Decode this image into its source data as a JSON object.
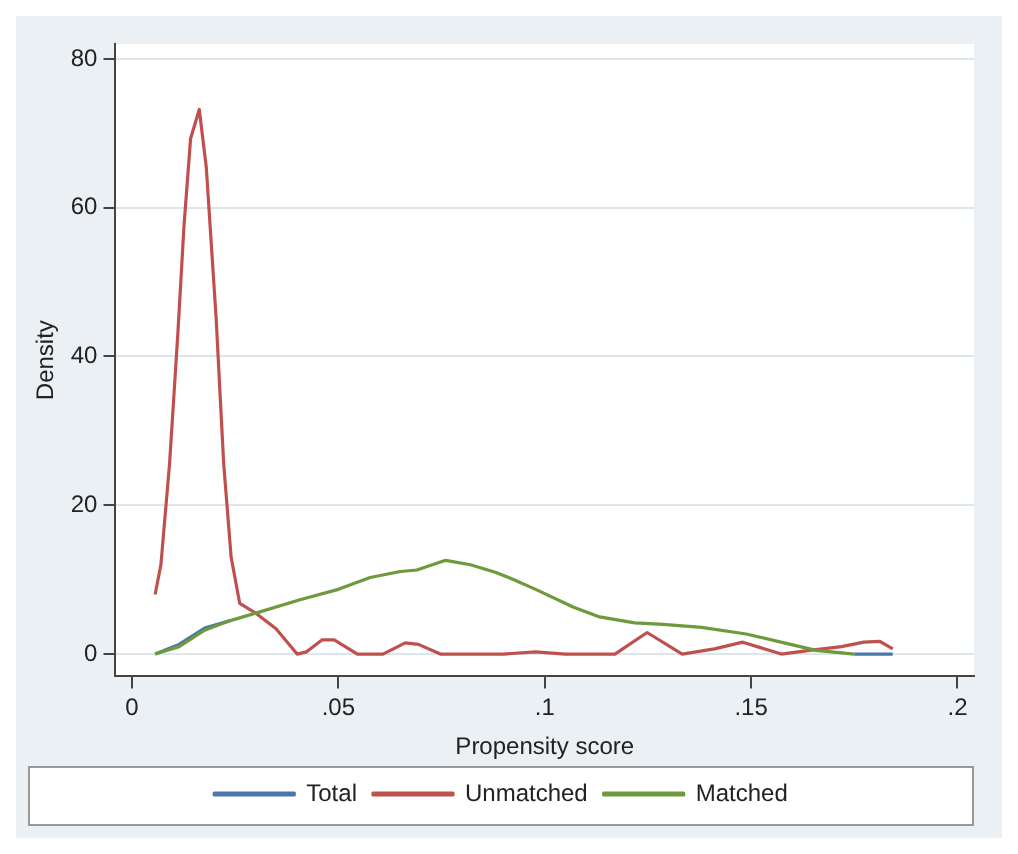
{
  "chart_data": {
    "type": "line",
    "xlabel": "Propensity score",
    "ylabel": "Density",
    "xlim": [
      -0.004,
      0.204
    ],
    "ylim": [
      -3,
      82
    ],
    "xticks": [
      0,
      {
        "value": 0.05,
        "label": ".05"
      },
      {
        "value": 0.1,
        "label": ".1"
      },
      {
        "value": 0.15,
        "label": ".15"
      },
      {
        "value": 0.2,
        "label": ".2"
      }
    ],
    "yticks": [
      0,
      20,
      40,
      60,
      80
    ],
    "grid": "y",
    "legend": "bottom",
    "marker": "none",
    "line_style": "solid",
    "series": [
      {
        "name": "Total",
        "color": "#4a78ad",
        "x": [
          0.0056,
          0.0114,
          0.0176,
          0.0238,
          0.03,
          0.0407,
          0.05,
          0.0577,
          0.065,
          0.069,
          0.076,
          0.082,
          0.088,
          0.0917,
          0.0978,
          0.107,
          0.1133,
          0.1218,
          0.1287,
          0.138,
          0.1488,
          0.158,
          0.1657,
          0.175,
          0.1843
        ],
        "values": [
          0,
          1.3,
          3.5,
          4.5,
          null,
          null,
          null,
          null,
          null,
          null,
          null,
          null,
          null,
          null,
          null,
          null,
          null,
          null,
          null,
          null,
          null,
          null,
          null,
          0,
          0
        ]
      },
      {
        "name": "Unmatched",
        "color": "#c0504d",
        "x": [
          0.0056,
          0.007,
          0.0091,
          0.0111,
          0.0126,
          0.0142,
          0.0163,
          0.018,
          0.0204,
          0.0222,
          0.024,
          0.0261,
          0.03,
          0.0349,
          0.04,
          0.0423,
          0.046,
          0.049,
          0.0546,
          0.0608,
          0.0662,
          0.0694,
          0.0747,
          0.09,
          0.0978,
          0.105,
          0.117,
          0.1248,
          0.1333,
          0.1411,
          0.148,
          0.1573,
          0.1642,
          0.1719,
          0.1773,
          0.1812,
          0.1843
        ],
        "values": [
          8,
          12,
          25.6,
          43,
          57.6,
          69.3,
          73.2,
          65.4,
          45,
          25.7,
          13.1,
          6.8,
          5.5,
          3.4,
          0,
          0.3,
          1.9,
          1.9,
          0,
          0,
          1.5,
          1.3,
          0,
          0,
          0.3,
          0,
          0,
          2.9,
          0,
          0.7,
          1.6,
          0,
          0.5,
          1.0,
          1.6,
          1.7,
          0.7
        ]
      },
      {
        "name": "Matched",
        "color": "#6e9a3b",
        "x": [
          0.0056,
          0.0114,
          0.0176,
          0.0238,
          0.03,
          0.0407,
          0.05,
          0.0577,
          0.065,
          0.069,
          0.076,
          0.082,
          0.088,
          0.0917,
          0.0978,
          0.107,
          0.1133,
          0.1218,
          0.1287,
          0.138,
          0.1488,
          0.158,
          0.1657,
          0.175
        ],
        "values": [
          0,
          1.0,
          3.2,
          4.5,
          5.5,
          7.3,
          8.7,
          10.3,
          11.1,
          11.3,
          12.6,
          12.0,
          11.0,
          10.2,
          8.7,
          6.3,
          5.0,
          4.2,
          4.0,
          3.6,
          2.7,
          1.5,
          0.5,
          0
        ]
      }
    ]
  }
}
